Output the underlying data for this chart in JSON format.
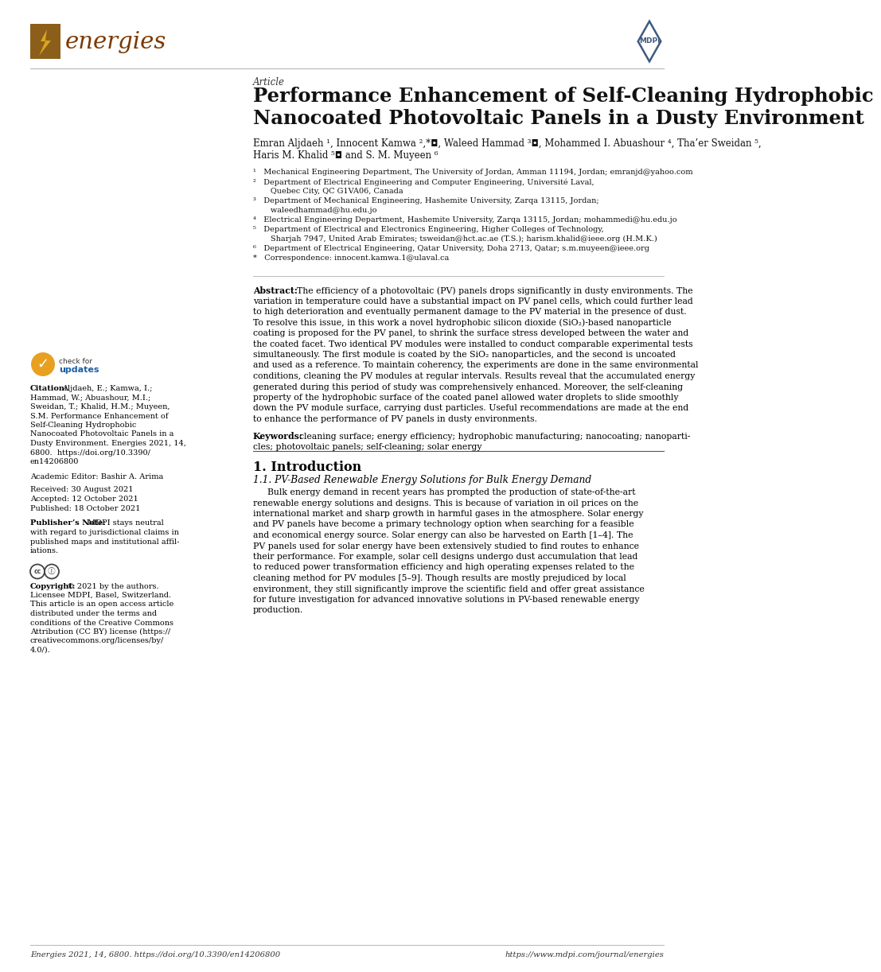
{
  "page_bg": "#ffffff",
  "energies_text_color": "#7B3800",
  "energies_icon_bg": "#8B5E1A",
  "energies_bolt_color": "#DAA520",
  "mdpi_border_color": "#3d5a80",
  "article_label": "Article",
  "title_line1": "Performance Enhancement of Self-Cleaning Hydrophobic",
  "title_line2": "Nanocoated Photovoltaic Panels in a Dusty Environment",
  "authors_line1": "Emran Aljdaeh ¹, Innocent Kamwa ²,*◘, Waleed Hammad ³◘, Mohammed I. Abuashour ⁴, Tha’er Sweidan ⁵,",
  "authors_line2": "Haris M. Khalid ⁵◘ and S. M. Muyeen ⁶",
  "affils": [
    "¹   Mechanical Engineering Department, The University of Jordan, Amman 11194, Jordan; emranjd@yahoo.com",
    "²   Department of Electrical Engineering and Computer Engineering, Université Laval,",
    "       Quebec City, QC G1VA06, Canada",
    "³   Department of Mechanical Engineering, Hashemite University, Zarqa 13115, Jordan;",
    "       waleedhammad@hu.edu.jo",
    "⁴   Electrical Engineering Department, Hashemite University, Zarqa 13115, Jordan; mohammedi@hu.edu.jo",
    "⁵   Department of Electrical and Electronics Engineering, Higher Colleges of Technology,",
    "       Sharjah 7947, United Arab Emirates; tsweidan@hct.ac.ae (T.S.); harism.khalid@ieee.org (H.M.K.)",
    "⁶   Department of Electrical Engineering, Qatar University, Doha 2713, Qatar; s.m.muyeen@ieee.org",
    "*   Correspondence: innocent.kamwa.1@ulaval.ca"
  ],
  "abstract_lines": [
    "The efficiency of a photovoltaic (PV) panels drops significantly in dusty environments. The",
    "variation in temperature could have a substantial impact on PV panel cells, which could further lead",
    "to high deterioration and eventually permanent damage to the PV material in the presence of dust.",
    "To resolve this issue, in this work a novel hydrophobic silicon dioxide (SiO₂)-based nanoparticle",
    "coating is proposed for the PV panel, to shrink the surface stress developed between the water and",
    "the coated facet. Two identical PV modules were installed to conduct comparable experimental tests",
    "simultaneously. The first module is coated by the SiO₂ nanoparticles, and the second is uncoated",
    "and used as a reference. To maintain coherency, the experiments are done in the same environmental",
    "conditions, cleaning the PV modules at regular intervals. Results reveal that the accumulated energy",
    "generated during this period of study was comprehensively enhanced. Moreover, the self-cleaning",
    "property of the hydrophobic surface of the coated panel allowed water droplets to slide smoothly",
    "down the PV module surface, carrying dust particles. Useful recommendations are made at the end",
    "to enhance the performance of PV panels in dusty environments."
  ],
  "keywords_line1": "cleaning surface; energy efficiency; hydrophobic manufacturing; nanocoating; nanoparti-",
  "keywords_line2": "cles; photovoltaic panels; self-cleaning; solar energy",
  "section1_title": "1. Introduction",
  "section1_subtitle": "1.1. PV-Based Renewable Energy Solutions for Bulk Energy Demand",
  "intro_lines": [
    "Bulk energy demand in recent years has prompted the production of state-of-the-art",
    "renewable energy solutions and designs. This is because of variation in oil prices on the",
    "international market and sharp growth in harmful gases in the atmosphere. Solar energy",
    "and PV panels have become a primary technology option when searching for a feasible",
    "and economical energy source. Solar energy can also be harvested on Earth [1–4]. The",
    "PV panels used for solar energy have been extensively studied to find routes to enhance",
    "their performance. For example, solar cell designs undergo dust accumulation that lead",
    "to reduced power transformation efficiency and high operating expenses related to the",
    "cleaning method for PV modules [5–9]. Though results are mostly prejudiced by local",
    "environment, they still significantly improve the scientific field and offer great assistance",
    "for future investigation for advanced innovative solutions in PV-based renewable energy",
    "production."
  ],
  "citation_lines": [
    "Aljdaeh, E.; Kamwa, I.;",
    "Hammad, W.; Abuashour, M.I.;",
    "Sweidan, T.; Khalid, H.M.; Muyeen,",
    "S.M. Performance Enhancement of",
    "Self-Cleaning Hydrophobic",
    "Nanocoated Photovoltaic Panels in a",
    "Dusty Environment. Energies 2021, 14,",
    "6800.  https://doi.org/10.3390/",
    "en14206800"
  ],
  "academic_editor": "Academic Editor: Bashir A. Arima",
  "received": "Received: 30 August 2021",
  "accepted": "Accepted: 12 October 2021",
  "published": "Published: 18 October 2021",
  "publisher_note_lines": [
    "MDPI stays neutral",
    "with regard to jurisdictional claims in",
    "published maps and institutional affil-",
    "iations."
  ],
  "copyright_lines": [
    "© 2021 by the authors.",
    "Licensee MDPI, Basel, Switzerland.",
    "This article is an open access article",
    "distributed under the terms and",
    "conditions of the Creative Commons",
    "Attribution (CC BY) license (https://",
    "creativecommons.org/licenses/by/",
    "4.0/)."
  ],
  "footer_left": "Energies 2021, 14, 6800. https://doi.org/10.3390/en14206800",
  "footer_right": "https://www.mdpi.com/journal/energies"
}
